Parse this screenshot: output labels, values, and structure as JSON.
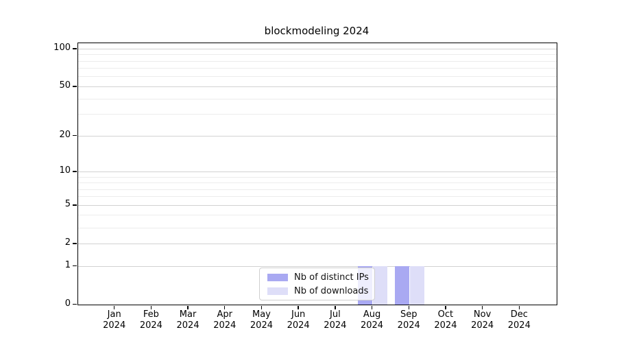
{
  "chart_data": {
    "type": "bar",
    "title": "blockmodeling 2024",
    "categories": [
      "Jan",
      "Feb",
      "Mar",
      "Apr",
      "May",
      "Jun",
      "Jul",
      "Aug",
      "Sep",
      "Oct",
      "Nov",
      "Dec"
    ],
    "category_year": "2024",
    "series": [
      {
        "name": "Nb of distinct IPs",
        "color": "#a9a9f2",
        "values": [
          0,
          0,
          0,
          0,
          0,
          0,
          0,
          1,
          1,
          0,
          0,
          0
        ]
      },
      {
        "name": "Nb of downloads",
        "color": "#dedef8",
        "values": [
          0,
          0,
          0,
          0,
          0,
          0,
          0,
          1,
          1,
          0,
          0,
          0
        ]
      }
    ],
    "yscale": "log1p",
    "yticks": [
      0,
      1,
      2,
      5,
      10,
      20,
      50,
      100
    ],
    "yticks_minor": [
      3,
      4,
      6,
      7,
      8,
      9,
      30,
      40,
      60,
      70,
      80,
      90
    ],
    "ylim": [
      0,
      111
    ],
    "xlabel": "",
    "ylabel": "",
    "grid": true,
    "legend_position": "lower center"
  }
}
